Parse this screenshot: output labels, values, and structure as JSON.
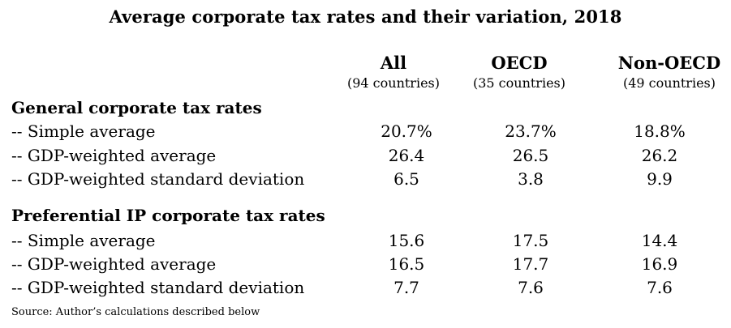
{
  "title": "Average corporate tax rates and their variation, 2018",
  "columns": [
    {
      "name": "All",
      "sub": "(94 countries)"
    },
    {
      "name": "OECD",
      "sub": "(35 countries)"
    },
    {
      "name": "Non-OECD",
      "sub": "(49 countries)"
    }
  ],
  "sections": [
    {
      "title": "General corporate tax rates",
      "rows": [
        {
          "label": "-- Simple average",
          "all": "20.7%",
          "oecd": "23.7%",
          "non_oecd": "18.8%"
        },
        {
          "label": "-- GDP-weighted average",
          "all": "26.4",
          "oecd": "26.5",
          "non_oecd": "26.2"
        },
        {
          "label": "-- GDP-weighted standard deviation",
          "all": "6.5",
          "oecd": "3.8",
          "non_oecd": "9.9"
        }
      ]
    },
    {
      "title": "Preferential IP corporate tax rates",
      "rows": [
        {
          "label": "-- Simple average",
          "all": "15.6",
          "oecd": "17.5",
          "non_oecd": "14.4"
        },
        {
          "label": "-- GDP-weighted average",
          "all": "16.5",
          "oecd": "17.7",
          "non_oecd": "16.9"
        },
        {
          "label": "-- GDP-weighted standard deviation",
          "all": "7.7",
          "oecd": "7.6",
          "non_oecd": "7.6"
        }
      ]
    }
  ],
  "source": "Source: Author’s calculations described below"
}
